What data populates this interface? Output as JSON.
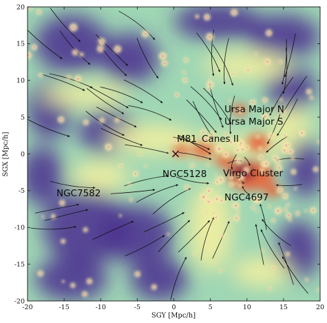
{
  "axes": {
    "xlabel": "SGY [Mpc/h]",
    "ylabel": "SGX [Mpc/h]",
    "xlim": [
      -20,
      20
    ],
    "ylim": [
      -20,
      20
    ],
    "x_ticks": [
      "-20",
      "-15",
      "-10",
      "-5",
      "0",
      "5",
      "10",
      "15",
      "20"
    ],
    "y_ticks": [
      "20",
      "15",
      "10",
      "5",
      "0",
      "-5",
      "-10",
      "-15",
      "-20"
    ]
  },
  "colormap": {
    "low": "#4a2f8f",
    "mid_low": "#3f7fbf",
    "mid": "#7fc9a8",
    "mid_high": "#f3f0a0",
    "high": "#e8643c",
    "peak": "#7a1a3a"
  },
  "labels": [
    {
      "text": "Ursa Major N"
    },
    {
      "text": "Ursa Major S"
    },
    {
      "text": "M81"
    },
    {
      "text": "Canes II"
    },
    {
      "text": "NGC5128"
    },
    {
      "text": "Virgo Cluster"
    },
    {
      "text": "NGC4697"
    },
    {
      "text": "NGC7582"
    }
  ],
  "marker": {
    "symbol": "×",
    "sgy": 0,
    "sgx": 0
  }
}
